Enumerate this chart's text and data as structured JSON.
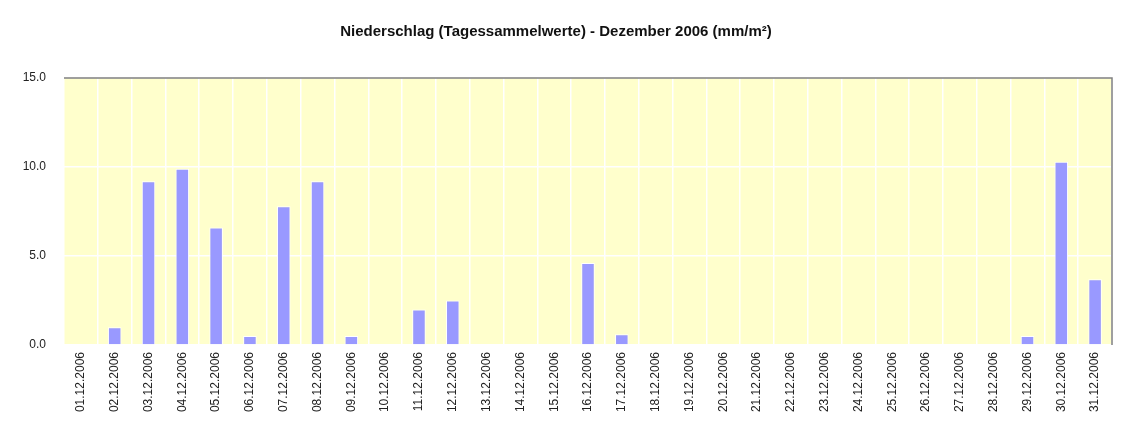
{
  "chart_data": {
    "type": "bar",
    "title": "Niederschlag (Tagessammelwerte) - Dezember 2006 (mm/m²)",
    "categories": [
      "01.12.2006",
      "02.12.2006",
      "03.12.2006",
      "04.12.2006",
      "05.12.2006",
      "06.12.2006",
      "07.12.2006",
      "08.12.2006",
      "09.12.2006",
      "10.12.2006",
      "11.12.2006",
      "12.12.2006",
      "13.12.2006",
      "14.12.2006",
      "15.12.2006",
      "16.12.2006",
      "17.12.2006",
      "18.12.2006",
      "19.12.2006",
      "20.12.2006",
      "21.12.2006",
      "22.12.2006",
      "23.12.2006",
      "24.12.2006",
      "25.12.2006",
      "26.12.2006",
      "27.12.2006",
      "28.12.2006",
      "29.12.2006",
      "30.12.2006",
      "31.12.2006"
    ],
    "values": [
      0,
      1.0,
      9.2,
      9.9,
      6.6,
      0.5,
      7.8,
      9.2,
      0.5,
      0,
      2.0,
      2.5,
      0,
      0,
      0,
      4.6,
      0.6,
      0,
      0,
      0,
      0,
      0,
      0,
      0,
      0,
      0,
      0,
      0,
      0.5,
      10.3,
      3.7
    ],
    "color": "#9999ff",
    "ylim": [
      0,
      15
    ],
    "yticks": [
      {
        "value": 0,
        "label": "0.0"
      },
      {
        "value": 5,
        "label": "5.0"
      },
      {
        "value": 10,
        "label": "10.0"
      },
      {
        "value": 15,
        "label": "15.0"
      }
    ],
    "grid": true
  }
}
